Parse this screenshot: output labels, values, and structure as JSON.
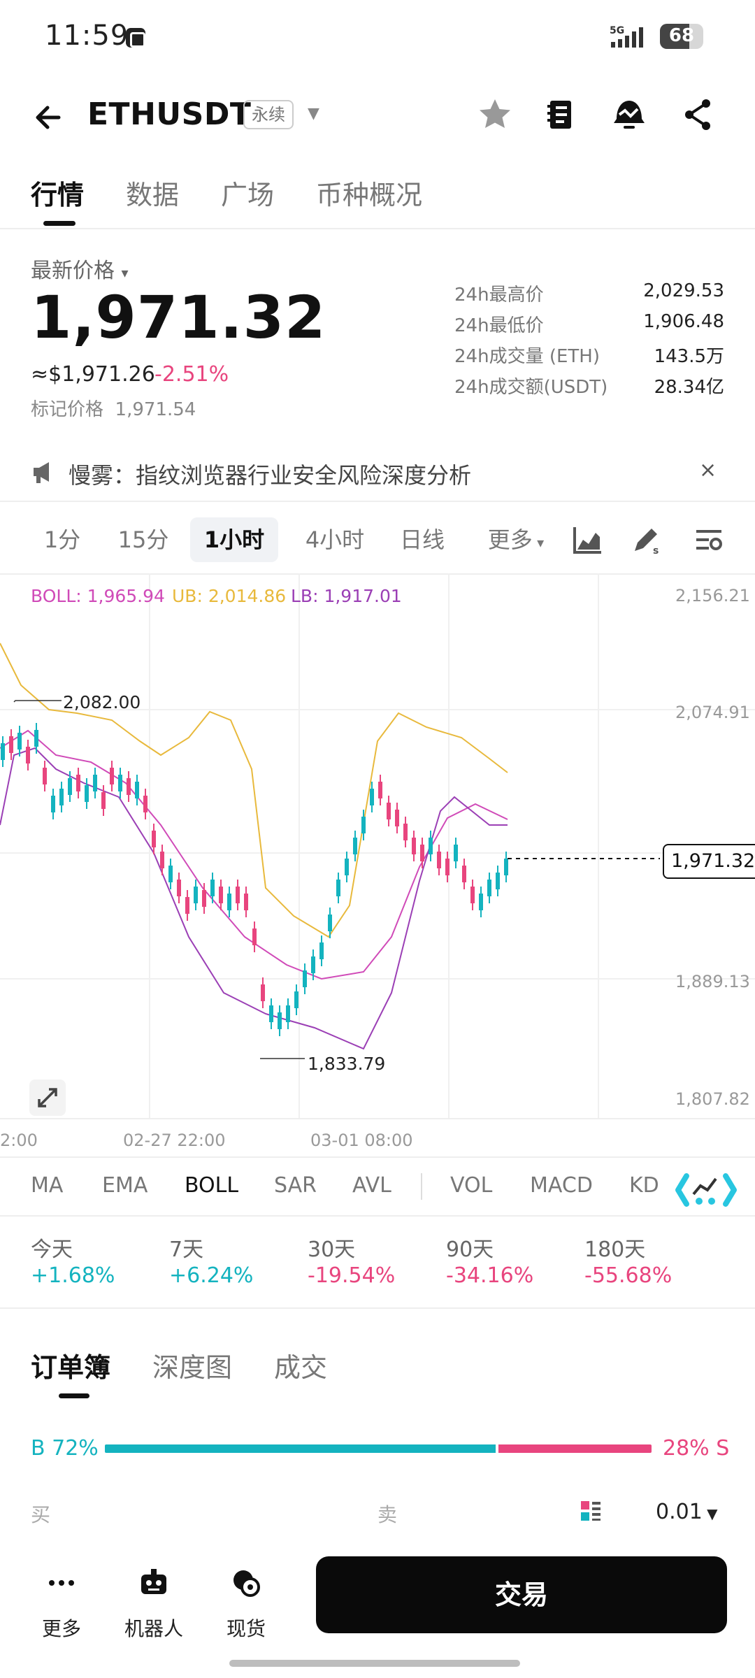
{
  "status_bar": {
    "time": "11:59",
    "network": "5G",
    "battery": "68"
  },
  "header": {
    "pair": "ETHUSDT",
    "contract_type": "永续"
  },
  "tabs": [
    "行情",
    "数据",
    "广场",
    "币种概况"
  ],
  "price": {
    "label": "最新价格",
    "last": "1,971.32",
    "usd_approx": "≈$1,971.26",
    "change": "-2.51%",
    "mark_label": "标记价格",
    "mark_value": "1,971.54"
  },
  "stats": [
    {
      "label": "24h最高价",
      "value": "2,029.53"
    },
    {
      "label": "24h最低价",
      "value": "1,906.48"
    },
    {
      "label": "24h成交量 (ETH)",
      "value": "143.5万"
    },
    {
      "label": "24h成交额(USDT)",
      "value": "28.34亿"
    }
  ],
  "notice": {
    "text": "慢雾：指纹浏览器行业安全风险深度分析",
    "close": "×"
  },
  "timeframes": [
    "1分",
    "15分",
    "1小时",
    "4小时",
    "日线",
    "更多"
  ],
  "timeframe_active": "1小时",
  "chart": {
    "boll": "BOLL: 1,965.94",
    "ub": "UB: 2,014.86",
    "lb": "LB: 1,917.01",
    "y_ticks": [
      "2,156.21",
      "2,074.91",
      "1,889.13",
      "1,807.82"
    ],
    "x_ticks": [
      "2:00",
      "02-27 22:00",
      "03-01 08:00"
    ],
    "high_label": "2,082.00",
    "low_label": "1,833.79",
    "last_price_tag": "1,971.32",
    "colors": {
      "up": "#14b3bf",
      "down": "#e8457e",
      "boll_mid": "#d04ab8",
      "upper": "#e8b93c",
      "lower": "#9b3fb5"
    }
  },
  "indicators": [
    "MA",
    "EMA",
    "BOLL",
    "SAR",
    "AVL",
    "VOL",
    "MACD",
    "KD"
  ],
  "indicator_active": "BOLL",
  "performance": [
    {
      "label": "今天",
      "value": "+1.68%"
    },
    {
      "label": "7天",
      "value": "+6.24%"
    },
    {
      "label": "30天",
      "value": "-19.54%"
    },
    {
      "label": "90天",
      "value": "-34.16%"
    },
    {
      "label": "180天",
      "value": "-55.68%"
    }
  ],
  "orderbook": {
    "tabs": [
      "订单簿",
      "深度图",
      "成交"
    ],
    "buy_ratio": "B 72%",
    "sell_ratio": "28% S",
    "buy_fraction": 0.72,
    "col_buy": "买",
    "col_sell": "卖",
    "precision": "0.01"
  },
  "bottom_nav": [
    {
      "label": "更多",
      "icon": "more-dots-icon"
    },
    {
      "label": "机器人",
      "icon": "robot-icon"
    },
    {
      "label": "现货",
      "icon": "spot-icon"
    }
  ],
  "trade_button": "交易"
}
